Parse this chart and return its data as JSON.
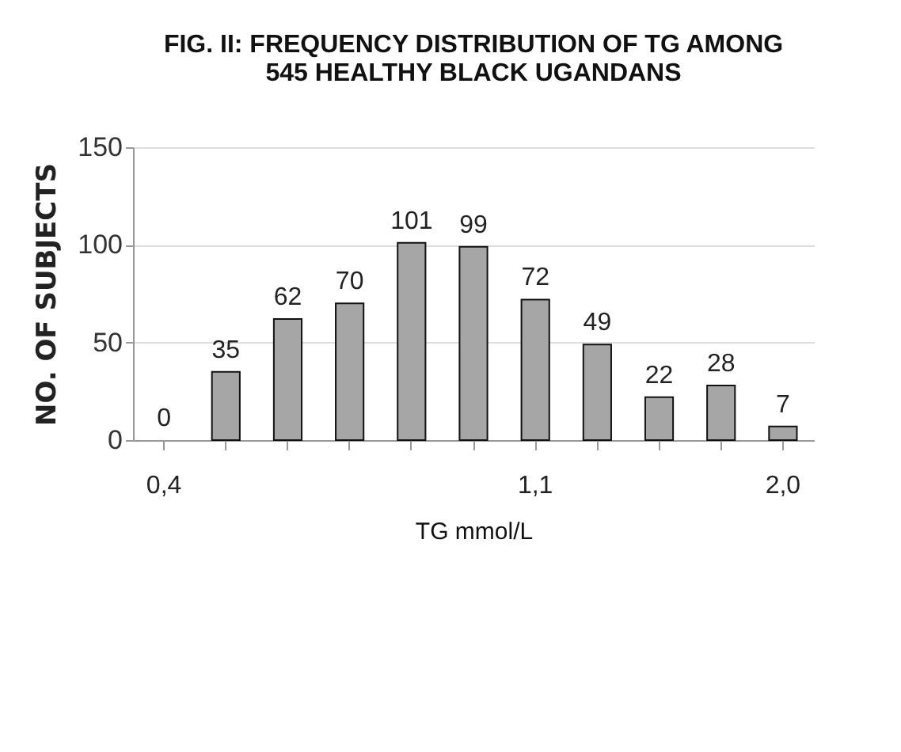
{
  "chart_data": {
    "type": "bar",
    "title": "FIG. II:  FREQUENCY DISTRIBUTION OF TG AMONG 545 HEALTHY BLACK UGANDANS",
    "xlabel": "TG mmol/L",
    "ylabel": "NO. OF SUBJECTS",
    "categories": [
      "0,4",
      null,
      null,
      null,
      null,
      null,
      "1,1",
      null,
      null,
      null,
      "2,0"
    ],
    "values": [
      0,
      35,
      62,
      70,
      101,
      99,
      72,
      49,
      22,
      28,
      7
    ],
    "color": "#a6a6a6",
    "ylim": [
      0,
      150
    ],
    "yticks": [
      0,
      50,
      100,
      150
    ],
    "grid": "y",
    "data_labels": true
  }
}
